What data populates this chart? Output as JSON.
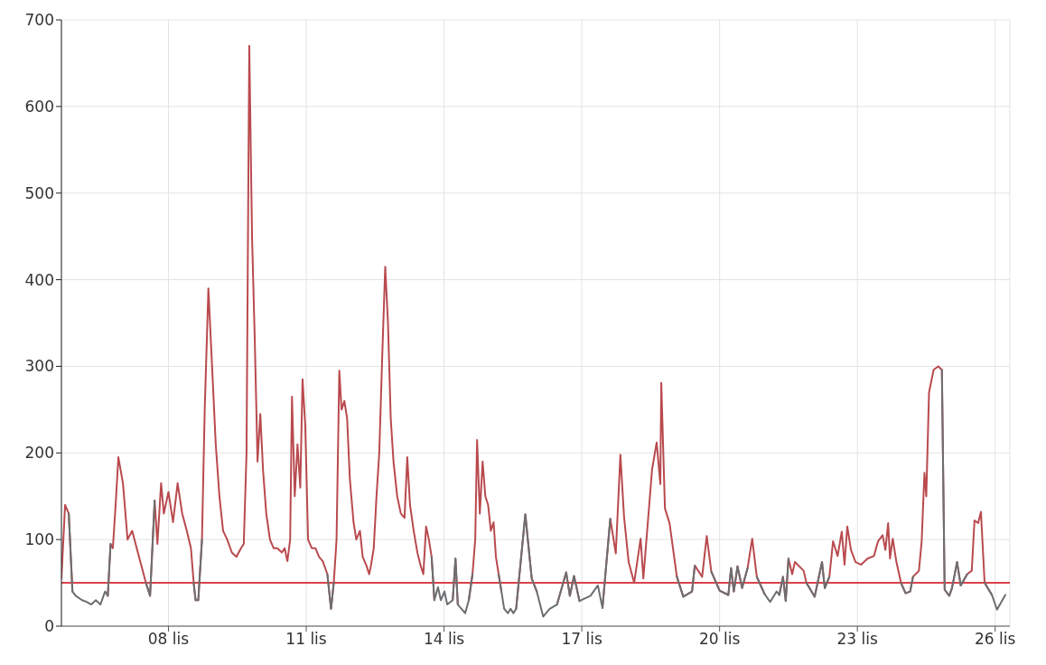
{
  "chart_data": {
    "type": "line",
    "x": [
      5.67,
      5.75,
      5.83,
      5.91,
      5.98,
      6.12,
      6.22,
      6.32,
      6.42,
      6.52,
      6.62,
      6.68,
      6.74,
      6.79,
      6.85,
      6.91,
      7.01,
      7.11,
      7.21,
      7.31,
      7.41,
      7.51,
      7.6,
      7.7,
      7.76,
      7.84,
      7.9,
      8.0,
      8.1,
      8.2,
      8.3,
      8.4,
      8.49,
      8.55,
      8.59,
      8.65,
      8.73,
      8.79,
      8.87,
      8.95,
      9.03,
      9.11,
      9.19,
      9.28,
      9.38,
      9.48,
      9.58,
      9.64,
      9.7,
      9.76,
      9.82,
      9.88,
      9.94,
      10.0,
      10.06,
      10.13,
      10.21,
      10.29,
      10.37,
      10.47,
      10.53,
      10.59,
      10.65,
      10.69,
      10.75,
      10.81,
      10.87,
      10.92,
      10.98,
      11.04,
      11.12,
      11.2,
      11.28,
      11.36,
      11.46,
      11.54,
      11.6,
      11.66,
      11.72,
      11.77,
      11.83,
      11.89,
      11.95,
      12.03,
      12.09,
      12.17,
      12.23,
      12.31,
      12.37,
      12.41,
      12.47,
      12.53,
      12.59,
      12.66,
      12.72,
      12.78,
      12.84,
      12.9,
      12.98,
      13.06,
      13.14,
      13.2,
      13.26,
      13.34,
      13.42,
      13.49,
      13.55,
      13.61,
      13.67,
      13.73,
      13.79,
      13.87,
      13.93,
      14.01,
      14.07,
      14.19,
      14.25,
      14.3,
      14.38,
      14.46,
      14.54,
      14.62,
      14.68,
      14.72,
      14.78,
      14.84,
      14.9,
      14.96,
      15.02,
      15.08,
      15.13,
      15.19,
      15.25,
      15.31,
      15.39,
      15.45,
      15.51,
      15.57,
      15.77,
      15.91,
      16.02,
      16.16,
      16.3,
      16.46,
      16.66,
      16.74,
      16.83,
      16.95,
      17.19,
      17.35,
      17.45,
      17.62,
      17.74,
      17.84,
      17.92,
      18.02,
      18.14,
      18.28,
      18.34,
      18.53,
      18.63,
      18.71,
      18.73,
      18.81,
      18.91,
      19.07,
      19.21,
      19.4,
      19.46,
      19.62,
      19.72,
      19.82,
      20.0,
      20.19,
      20.25,
      20.31,
      20.39,
      20.49,
      20.61,
      20.71,
      20.81,
      20.98,
      21.1,
      21.24,
      21.3,
      21.38,
      21.44,
      21.5,
      21.58,
      21.64,
      21.83,
      21.89,
      22.07,
      22.23,
      22.29,
      22.39,
      22.47,
      22.57,
      22.66,
      22.72,
      22.78,
      22.86,
      22.96,
      23.08,
      23.22,
      23.36,
      23.45,
      23.55,
      23.61,
      23.67,
      23.71,
      23.77,
      23.85,
      23.95,
      24.05,
      24.15,
      24.21,
      24.34,
      24.4,
      24.46,
      24.5,
      24.56,
      24.66,
      24.76,
      24.84,
      24.9,
      25.0,
      25.06,
      25.17,
      25.25,
      25.39,
      25.49,
      25.55,
      25.63,
      25.69,
      25.77,
      25.93,
      26.04,
      26.22
    ],
    "series": [
      {
        "color": "#b94a4e",
        "values": [
          55,
          140,
          130,
          40,
          null,
          null,
          null,
          null,
          null,
          null,
          null,
          35,
          95,
          90,
          140,
          195,
          165,
          100,
          110,
          90,
          70,
          50,
          35,
          145,
          95,
          165,
          130,
          155,
          120,
          165,
          130,
          110,
          90,
          50,
          30,
          30,
          100,
          250,
          390,
          300,
          210,
          150,
          110,
          100,
          85,
          80,
          90,
          95,
          200,
          670,
          450,
          330,
          190,
          245,
          180,
          130,
          100,
          90,
          90,
          85,
          90,
          75,
          100,
          265,
          150,
          210,
          160,
          285,
          230,
          100,
          90,
          90,
          80,
          75,
          60,
          20,
          50,
          100,
          295,
          250,
          260,
          240,
          170,
          120,
          100,
          110,
          80,
          70,
          60,
          70,
          90,
          150,
          200,
          320,
          415,
          350,
          240,
          190,
          150,
          130,
          125,
          195,
          140,
          110,
          85,
          70,
          60,
          115,
          100,
          80,
          30,
          null,
          null,
          null,
          null,
          30,
          78,
          25,
          null,
          null,
          30,
          60,
          100,
          215,
          130,
          190,
          150,
          140,
          110,
          120,
          80,
          60,
          40,
          null,
          null,
          null,
          null,
          20,
          129,
          55,
          40,
          null,
          null,
          25,
          62,
          35,
          58,
          29,
          null,
          null,
          21,
          124,
          84,
          198,
          126,
          74,
          50,
          101,
          55,
          181,
          212,
          164,
          281,
          136,
          119,
          57,
          34,
          40,
          70,
          57,
          104,
          63,
          41,
          36,
          67,
          40,
          69,
          44,
          67,
          101,
          57,
          37,
          null,
          null,
          36,
          57,
          29,
          78,
          60,
          74,
          64,
          50,
          34,
          74,
          44,
          57,
          98,
          81,
          109,
          71,
          115,
          88,
          74,
          71,
          78,
          81,
          98,
          105,
          88,
          119,
          78,
          101,
          74,
          50,
          38,
          40,
          57,
          64,
          98,
          177,
          150,
          270,
          296,
          300,
          296,
          42,
          35,
          44,
          74,
          47,
          60,
          64,
          122,
          119,
          132,
          50,
          36,
          null,
          null
        ]
      },
      {
        "color": "#6b6e70",
        "values": [
          null,
          null,
          130,
          40,
          35,
          30,
          28,
          25,
          30,
          25,
          40,
          35,
          95,
          null,
          null,
          null,
          null,
          null,
          null,
          null,
          null,
          50,
          35,
          145,
          null,
          null,
          null,
          null,
          null,
          null,
          null,
          null,
          null,
          50,
          30,
          30,
          100,
          null,
          null,
          null,
          null,
          null,
          null,
          null,
          null,
          null,
          null,
          null,
          null,
          null,
          null,
          null,
          null,
          null,
          null,
          null,
          null,
          null,
          null,
          null,
          null,
          null,
          null,
          null,
          null,
          null,
          null,
          null,
          null,
          null,
          null,
          null,
          null,
          null,
          60,
          20,
          50,
          null,
          null,
          null,
          null,
          null,
          null,
          null,
          null,
          null,
          null,
          null,
          null,
          null,
          null,
          null,
          null,
          null,
          null,
          null,
          null,
          null,
          null,
          null,
          null,
          null,
          null,
          null,
          null,
          null,
          null,
          null,
          null,
          80,
          30,
          45,
          30,
          40,
          25,
          30,
          78,
          25,
          20,
          15,
          30,
          60,
          null,
          null,
          null,
          null,
          null,
          null,
          null,
          null,
          null,
          60,
          40,
          20,
          15,
          20,
          15,
          20,
          129,
          55,
          40,
          11,
          20,
          25,
          62,
          35,
          58,
          29,
          35,
          47,
          21,
          124,
          null,
          null,
          null,
          null,
          null,
          null,
          null,
          null,
          null,
          null,
          null,
          null,
          null,
          57,
          34,
          40,
          70,
          null,
          null,
          63,
          41,
          36,
          67,
          40,
          69,
          44,
          67,
          null,
          57,
          37,
          28,
          40,
          36,
          57,
          29,
          78,
          null,
          null,
          null,
          50,
          34,
          74,
          44,
          57,
          null,
          null,
          null,
          null,
          null,
          null,
          null,
          null,
          null,
          null,
          null,
          null,
          null,
          null,
          null,
          null,
          null,
          50,
          38,
          40,
          57,
          null,
          null,
          null,
          null,
          null,
          null,
          null,
          296,
          42,
          35,
          44,
          74,
          47,
          60,
          null,
          null,
          null,
          null,
          50,
          36,
          19,
          36
        ]
      }
    ],
    "xlim": [
      5.67,
      26.32
    ],
    "xticks": [
      {
        "value": 8,
        "label": "08 lis"
      },
      {
        "value": 11,
        "label": "11 lis"
      },
      {
        "value": 14,
        "label": "14 lis"
      },
      {
        "value": 17,
        "label": "17 lis"
      },
      {
        "value": 20,
        "label": "20 lis"
      },
      {
        "value": 23,
        "label": "23 lis"
      },
      {
        "value": 26,
        "label": "26 lis"
      }
    ],
    "ylim": [
      0,
      700
    ],
    "yticks": [
      0,
      100,
      200,
      300,
      400,
      500,
      600,
      700
    ],
    "ref_lines": [
      {
        "axis": "y",
        "value": 50,
        "color": "#d9414a"
      }
    ],
    "grid": true,
    "marker": "none",
    "line_style": "solid"
  }
}
